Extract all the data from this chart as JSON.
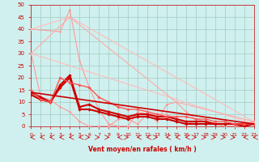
{
  "bg_color": "#cff0ee",
  "grid_color": "#a0ccc0",
  "xlabel": "Vent moyen/en rafales ( km/h )",
  "xlabel_color": "#cc0000",
  "tick_color": "#cc0000",
  "xlim": [
    0,
    23
  ],
  "ylim": [
    0,
    50
  ],
  "xticks": [
    0,
    1,
    2,
    3,
    4,
    5,
    6,
    7,
    8,
    9,
    10,
    11,
    12,
    13,
    14,
    15,
    16,
    17,
    18,
    19,
    20,
    21,
    22,
    23
  ],
  "yticks": [
    0,
    5,
    10,
    15,
    20,
    25,
    30,
    35,
    40,
    45,
    50
  ],
  "series": [
    {
      "x": [
        0,
        3,
        4,
        5,
        6,
        7,
        8,
        9,
        10,
        11,
        12,
        13,
        14,
        15,
        16,
        17,
        18,
        19,
        20,
        21,
        22,
        23
      ],
      "y": [
        40,
        39,
        48,
        27,
        16,
        7,
        1,
        0,
        0,
        6,
        5,
        2,
        9,
        10,
        6,
        3,
        2,
        1,
        1,
        1,
        1,
        2
      ],
      "color": "#ff9999",
      "lw": 0.8,
      "marker": "D",
      "ms": 1.5
    },
    {
      "x": [
        0,
        1,
        2,
        3,
        4,
        5,
        6,
        7,
        8,
        9,
        10,
        11,
        12,
        13,
        14,
        15,
        16,
        17,
        18,
        19,
        20,
        21,
        22,
        23
      ],
      "y": [
        30,
        12,
        11,
        8,
        6,
        2,
        0,
        0,
        0,
        3,
        3,
        1,
        5,
        5,
        5,
        3,
        2,
        1,
        1,
        1,
        0,
        0,
        0,
        2
      ],
      "color": "#ff9999",
      "lw": 0.8,
      "marker": "D",
      "ms": 1.5
    },
    {
      "x": [
        0,
        4,
        23
      ],
      "y": [
        40,
        45,
        2
      ],
      "color": "#ffbbbb",
      "lw": 0.8,
      "marker": "D",
      "ms": 1.5
    },
    {
      "x": [
        0,
        23
      ],
      "y": [
        30,
        1
      ],
      "color": "#ffbbbb",
      "lw": 0.8,
      "marker": "D",
      "ms": 1.5
    },
    {
      "x": [
        0,
        1,
        2,
        3,
        4,
        5,
        6,
        7,
        8,
        9,
        10,
        11,
        12,
        13,
        14,
        15,
        16,
        17,
        18,
        19,
        20,
        21,
        22,
        23
      ],
      "y": [
        14,
        12,
        10,
        16,
        20,
        7,
        7,
        6,
        5,
        4,
        3,
        4,
        4,
        3,
        3,
        2,
        1,
        1,
        1,
        1,
        1,
        1,
        0,
        1
      ],
      "color": "#cc0000",
      "lw": 1.5,
      "marker": "D",
      "ms": 2
    },
    {
      "x": [
        0,
        1,
        2,
        3,
        4,
        5,
        6,
        7,
        8,
        9,
        10,
        11,
        12,
        13,
        14,
        15,
        16,
        17,
        18,
        19,
        20,
        21,
        22,
        23
      ],
      "y": [
        13,
        11,
        10,
        17,
        21,
        8,
        9,
        7,
        6,
        5,
        4,
        5,
        5,
        4,
        4,
        3,
        2,
        2,
        2,
        1,
        1,
        1,
        1,
        1
      ],
      "color": "#cc0000",
      "lw": 1.5,
      "marker": "D",
      "ms": 2
    },
    {
      "x": [
        0,
        1,
        2,
        3,
        4,
        5,
        6,
        7,
        8,
        9,
        10,
        11,
        12,
        13,
        14,
        15,
        16,
        17,
        18,
        19,
        20,
        21,
        22,
        23
      ],
      "y": [
        15,
        11,
        10,
        20,
        18,
        17,
        16,
        12,
        10,
        8,
        7,
        7,
        6,
        5,
        4,
        4,
        4,
        3,
        3,
        2,
        2,
        1,
        1,
        1
      ],
      "color": "#ff5555",
      "lw": 1.0,
      "marker": "D",
      "ms": 1.8
    },
    {
      "x": [
        0,
        4,
        15,
        23
      ],
      "y": [
        30,
        45,
        10,
        2
      ],
      "color": "#ffaaaa",
      "lw": 0.8,
      "marker": "D",
      "ms": 1.5
    },
    {
      "x": [
        0,
        23
      ],
      "y": [
        14,
        1
      ],
      "color": "#cc0000",
      "lw": 1.2,
      "marker": null,
      "ms": 0
    }
  ],
  "arrows": {
    "x": [
      0,
      1,
      2,
      3,
      4,
      5,
      6,
      7,
      8,
      9,
      10,
      11,
      12,
      13,
      14,
      15,
      16,
      17,
      18,
      19,
      20,
      21,
      22,
      23
    ],
    "dirs": [
      "L",
      "L",
      "L",
      "L",
      "L",
      "L",
      "R",
      "R",
      "R",
      "L",
      "R",
      "L",
      "L",
      "R",
      "L",
      "L",
      "L",
      "R",
      "R",
      "R",
      "R",
      "R",
      "L",
      "L"
    ]
  }
}
